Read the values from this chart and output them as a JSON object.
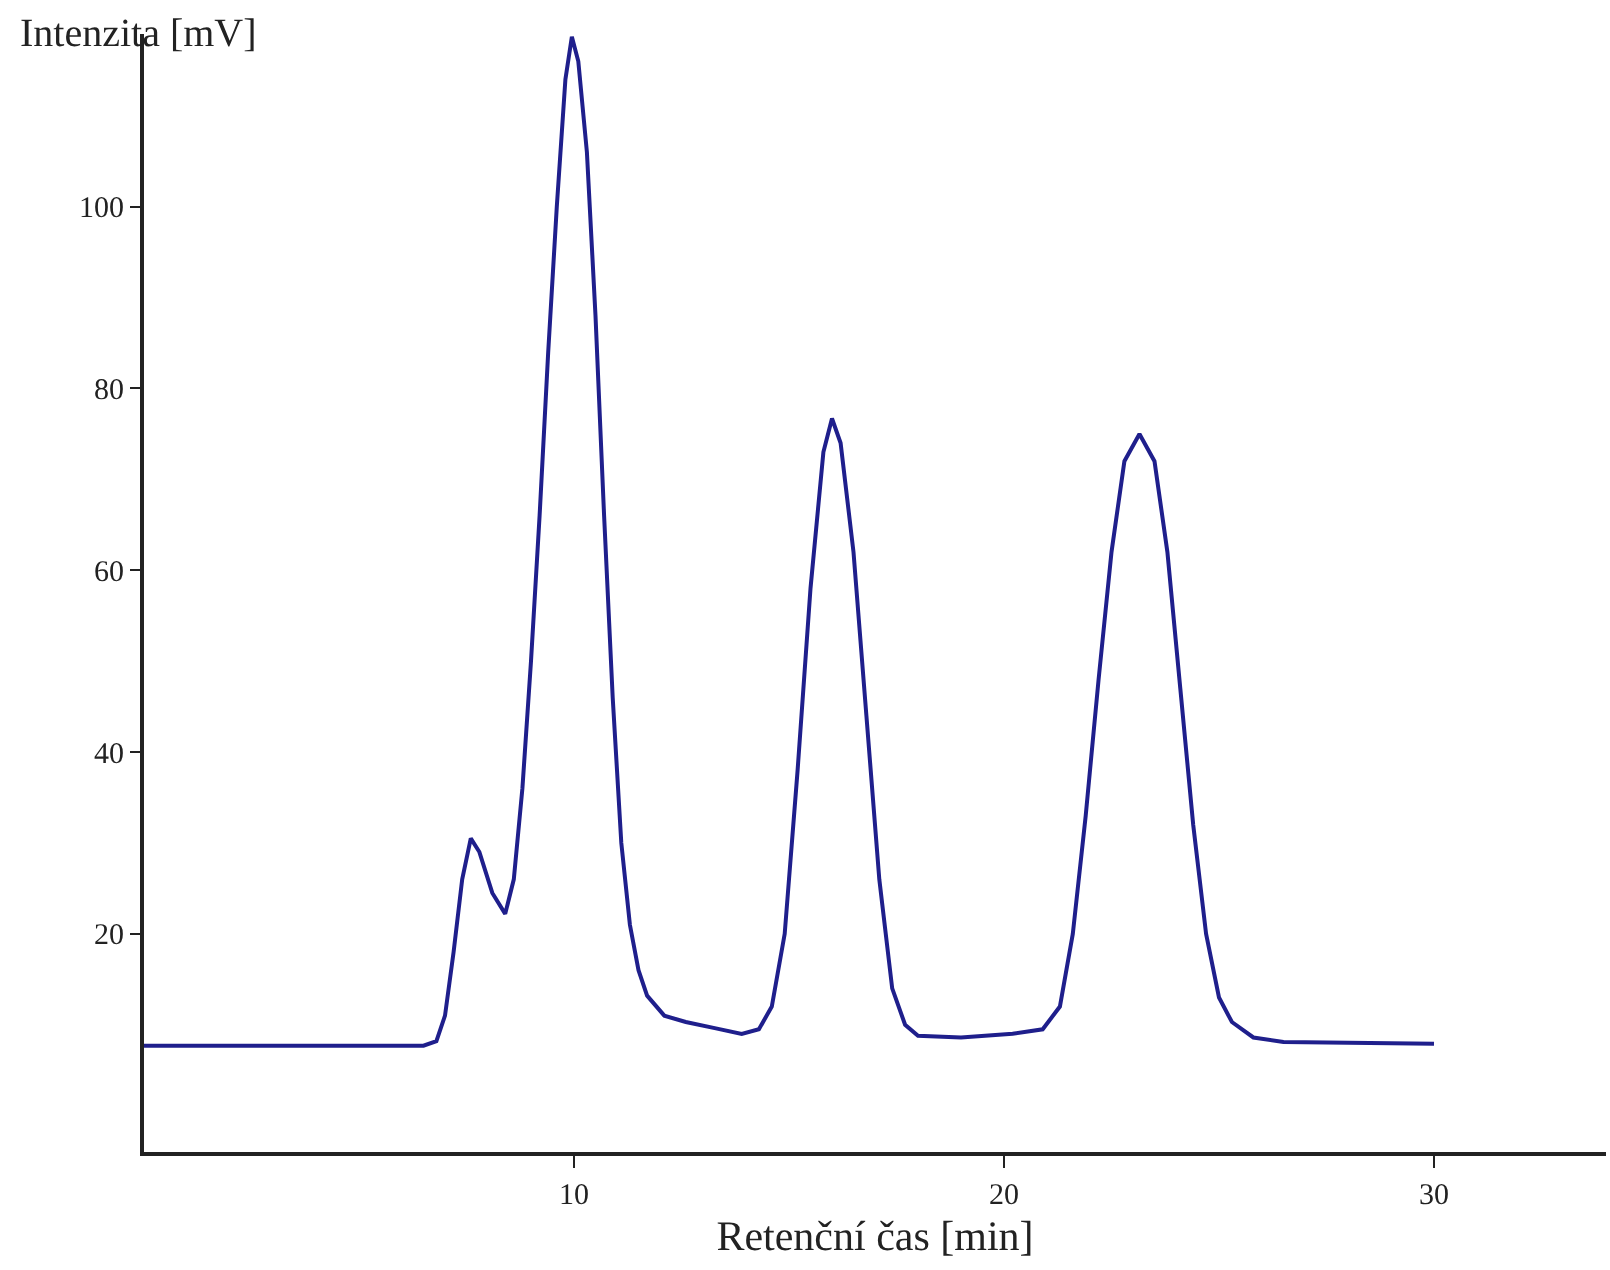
{
  "chart_data": {
    "type": "line",
    "xlabel": "Retenční čas [min]",
    "ylabel": "Intenzita [mV]",
    "x": [
      0,
      6.5,
      6.8,
      7.0,
      7.2,
      7.4,
      7.6,
      7.8,
      8.1,
      8.4,
      8.6,
      8.8,
      9.0,
      9.2,
      9.4,
      9.6,
      9.8,
      9.95,
      10.1,
      10.3,
      10.5,
      10.7,
      10.9,
      11.1,
      11.3,
      11.5,
      11.7,
      12.1,
      12.6,
      13.3,
      13.9,
      14.3,
      14.6,
      14.9,
      15.2,
      15.5,
      15.8,
      16.0,
      16.2,
      16.5,
      16.8,
      17.1,
      17.4,
      17.7,
      18.0,
      19.0,
      20.2,
      20.9,
      21.3,
      21.6,
      21.9,
      22.2,
      22.5,
      22.8,
      23.15,
      23.5,
      23.8,
      24.1,
      24.4,
      24.7,
      25.0,
      25.3,
      25.8,
      26.5,
      30
    ],
    "series": [
      {
        "color": "#1f1f8c",
        "values": [
          7.7,
          7.7,
          8.2,
          11,
          18,
          26,
          30.5,
          29,
          24.5,
          22.2,
          26,
          36,
          50,
          66,
          84,
          100,
          114,
          118.7,
          116,
          106,
          88,
          66,
          46,
          30,
          21,
          16,
          13.2,
          11,
          10.3,
          9.6,
          9.0,
          9.5,
          12,
          20,
          38,
          58,
          73,
          76.7,
          74,
          62,
          44,
          26,
          14,
          10,
          8.8,
          8.6,
          9.0,
          9.5,
          12,
          20,
          33,
          48,
          62,
          72,
          75,
          72,
          62,
          47,
          32,
          20,
          13,
          10.3,
          8.6,
          8.1,
          7.9
        ]
      }
    ],
    "xlim": [
      0,
      34
    ],
    "xticks": [
      10,
      20,
      30
    ],
    "ylim": [
      -4,
      119
    ],
    "yticks": [
      20,
      40,
      60,
      80,
      100
    ],
    "grid": false,
    "marker": "none",
    "line_style": "solid"
  }
}
